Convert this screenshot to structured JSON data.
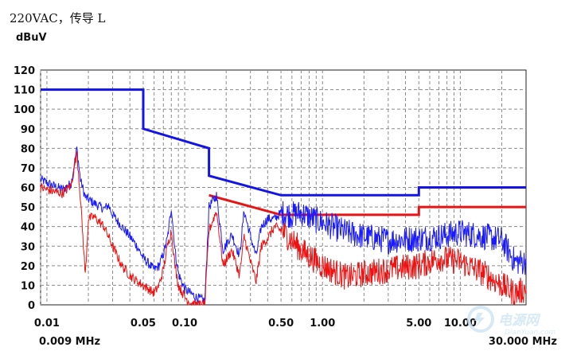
{
  "chart_data": {
    "type": "line",
    "title": "220VAC，传导 L",
    "ylabel": "dBuV",
    "x_scale": "log",
    "xlim": [
      0.009,
      30.0
    ],
    "ylim": [
      0,
      120
    ],
    "y_ticks": [
      0,
      10,
      20,
      30,
      40,
      50,
      60,
      70,
      80,
      90,
      100,
      110,
      120
    ],
    "x_ticks": [
      {
        "value": 0.01,
        "label": "0.01"
      },
      {
        "value": 0.05,
        "label": "0.05"
      },
      {
        "value": 0.1,
        "label": "0.10"
      },
      {
        "value": 0.5,
        "label": "0.50"
      },
      {
        "value": 1.0,
        "label": "1.00"
      },
      {
        "value": 5.0,
        "label": "5.00"
      },
      {
        "value": 10.0,
        "label": "10.00"
      }
    ],
    "x_edge_labels": {
      "left": "0.009 MHz",
      "right": "30.000 MHz"
    },
    "grid": true,
    "series": [
      {
        "color": "#1414e6",
        "style": "limit",
        "x": [
          0.009,
          0.05,
          0.05,
          0.15,
          0.15,
          0.5,
          5.0,
          5.0,
          30.0
        ],
        "y": [
          110,
          110,
          90,
          80,
          66,
          56,
          56,
          60,
          60
        ]
      },
      {
        "color": "#e61414",
        "style": "limit",
        "x": [
          0.15,
          0.5,
          5.0,
          5.0,
          30.0
        ],
        "y": [
          56,
          46,
          46,
          50,
          50
        ]
      },
      {
        "color": "#1a1aff",
        "style": "measurement",
        "x": [
          0.009,
          0.011,
          0.013,
          0.015,
          0.0165,
          0.0175,
          0.019,
          0.022,
          0.026,
          0.028,
          0.03,
          0.035,
          0.04,
          0.045,
          0.05,
          0.06,
          0.065,
          0.07,
          0.075,
          0.08,
          0.085,
          0.09,
          0.1,
          0.11,
          0.12,
          0.13,
          0.14,
          0.15,
          0.17,
          0.19,
          0.22,
          0.25,
          0.27,
          0.3,
          0.33,
          0.36,
          0.4,
          0.45,
          0.5,
          0.6,
          0.7,
          0.8,
          1.0,
          1.5,
          2.0,
          3.0,
          5.0,
          7.0,
          10.0,
          15.0,
          20.0,
          25.0,
          30.0
        ],
        "y": [
          64,
          61,
          59,
          62,
          80,
          64,
          55,
          52,
          49,
          51,
          46,
          40,
          35,
          30,
          24,
          18,
          20,
          26,
          34,
          50,
          28,
          16,
          8,
          6,
          4,
          3,
          2,
          50,
          56,
          28,
          36,
          25,
          48,
          35,
          25,
          40,
          44,
          44,
          47,
          46,
          47,
          45,
          42,
          37,
          35,
          33,
          34,
          35,
          37,
          35,
          33,
          22,
          22
        ]
      },
      {
        "color": "#ee1111",
        "style": "measurement",
        "x": [
          0.009,
          0.011,
          0.013,
          0.015,
          0.0165,
          0.0175,
          0.019,
          0.02,
          0.022,
          0.026,
          0.03,
          0.035,
          0.04,
          0.045,
          0.05,
          0.06,
          0.065,
          0.07,
          0.075,
          0.08,
          0.085,
          0.09,
          0.1,
          0.11,
          0.12,
          0.13,
          0.14,
          0.15,
          0.17,
          0.19,
          0.22,
          0.25,
          0.27,
          0.3,
          0.33,
          0.36,
          0.4,
          0.45,
          0.5,
          0.6,
          0.7,
          0.8,
          1.0,
          1.5,
          2.0,
          3.0,
          5.0,
          7.0,
          10.0,
          15.0,
          20.0,
          25.0,
          30.0
        ],
        "y": [
          60,
          58,
          57,
          61,
          78,
          55,
          15,
          44,
          45,
          40,
          30,
          20,
          15,
          12,
          10,
          6,
          10,
          18,
          30,
          38,
          20,
          10,
          4,
          1,
          0,
          0,
          0,
          38,
          48,
          20,
          28,
          15,
          35,
          22,
          12,
          30,
          34,
          40,
          38,
          33,
          28,
          25,
          20,
          14,
          16,
          18,
          20,
          24,
          22,
          16,
          10,
          6,
          8
        ]
      }
    ]
  },
  "watermark": {
    "brand": "电源网",
    "url": "DianYuan.com"
  }
}
